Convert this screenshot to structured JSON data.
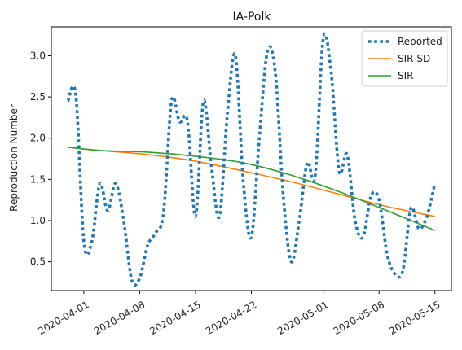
{
  "chart_data": {
    "type": "line",
    "title": "IA-Polk",
    "xlabel": "",
    "ylabel": "Reproduction Number",
    "x_range": [
      "2020-03-30",
      "2020-05-15"
    ],
    "ylim": [
      0.15,
      3.35
    ],
    "x_ticks": [
      "2020-04-01",
      "2020-04-08",
      "2020-04-15",
      "2020-04-22",
      "2020-05-01",
      "2020-05-08",
      "2020-05-15"
    ],
    "y_ticks": [
      0.5,
      1.0,
      1.5,
      2.0,
      2.5,
      3.0
    ],
    "y_tick_labels": [
      "0.5",
      "1.0",
      "1.5",
      "2.0",
      "2.5",
      "3.0"
    ],
    "grid": false,
    "legend_position": "top-right",
    "series": [
      {
        "name": "Reported",
        "style": "dotted",
        "color": "#1f77b4",
        "points": [
          [
            "2020-03-30",
            2.45
          ],
          [
            "2020-03-31",
            2.52
          ],
          [
            "2020-04-01",
            0.75
          ],
          [
            "2020-04-02",
            0.74
          ],
          [
            "2020-04-03",
            1.45
          ],
          [
            "2020-04-04",
            1.12
          ],
          [
            "2020-04-05",
            1.45
          ],
          [
            "2020-04-06",
            1.0
          ],
          [
            "2020-04-07",
            0.28
          ],
          [
            "2020-04-08",
            0.3
          ],
          [
            "2020-04-09",
            0.7
          ],
          [
            "2020-04-10",
            0.85
          ],
          [
            "2020-04-11",
            1.1
          ],
          [
            "2020-04-12",
            2.45
          ],
          [
            "2020-04-13",
            2.2
          ],
          [
            "2020-04-14",
            2.2
          ],
          [
            "2020-04-15",
            1.05
          ],
          [
            "2020-04-16",
            2.45
          ],
          [
            "2020-04-17",
            1.65
          ],
          [
            "2020-04-18",
            1.05
          ],
          [
            "2020-04-19",
            2.3
          ],
          [
            "2020-04-20",
            3.0
          ],
          [
            "2020-04-21",
            1.45
          ],
          [
            "2020-04-22",
            0.8
          ],
          [
            "2020-04-23",
            2.0
          ],
          [
            "2020-04-24",
            3.05
          ],
          [
            "2020-04-25",
            2.8
          ],
          [
            "2020-04-26",
            1.3
          ],
          [
            "2020-04-27",
            0.5
          ],
          [
            "2020-04-28",
            1.0
          ],
          [
            "2020-04-29",
            1.7
          ],
          [
            "2020-04-30",
            1.55
          ],
          [
            "2020-05-01",
            3.2
          ],
          [
            "2020-05-02",
            2.8
          ],
          [
            "2020-05-03",
            1.6
          ],
          [
            "2020-05-04",
            1.8
          ],
          [
            "2020-05-05",
            1.0
          ],
          [
            "2020-05-06",
            0.8
          ],
          [
            "2020-05-07",
            1.3
          ],
          [
            "2020-05-08",
            1.25
          ],
          [
            "2020-05-09",
            0.6
          ],
          [
            "2020-05-10",
            0.35
          ],
          [
            "2020-05-11",
            0.4
          ],
          [
            "2020-05-12",
            1.15
          ],
          [
            "2020-05-13",
            0.9
          ],
          [
            "2020-05-14",
            1.05
          ],
          [
            "2020-05-15",
            1.45
          ]
        ]
      },
      {
        "name": "SIR-SD",
        "style": "solid",
        "color": "#ff7f0e",
        "points": [
          [
            "2020-03-30",
            1.89
          ],
          [
            "2020-04-03",
            1.85
          ],
          [
            "2020-04-09",
            1.8
          ],
          [
            "2020-04-15",
            1.72
          ],
          [
            "2020-04-21",
            1.6
          ],
          [
            "2020-04-27",
            1.47
          ],
          [
            "2020-05-03",
            1.32
          ],
          [
            "2020-05-09",
            1.17
          ],
          [
            "2020-05-15",
            1.05
          ]
        ]
      },
      {
        "name": "SIR",
        "style": "solid",
        "color": "#2ca02c",
        "points": [
          [
            "2020-03-30",
            1.89
          ],
          [
            "2020-04-03",
            1.85
          ],
          [
            "2020-04-09",
            1.83
          ],
          [
            "2020-04-15",
            1.78
          ],
          [
            "2020-04-21",
            1.7
          ],
          [
            "2020-04-27",
            1.55
          ],
          [
            "2020-05-03",
            1.35
          ],
          [
            "2020-05-09",
            1.12
          ],
          [
            "2020-05-15",
            0.88
          ]
        ]
      }
    ]
  }
}
